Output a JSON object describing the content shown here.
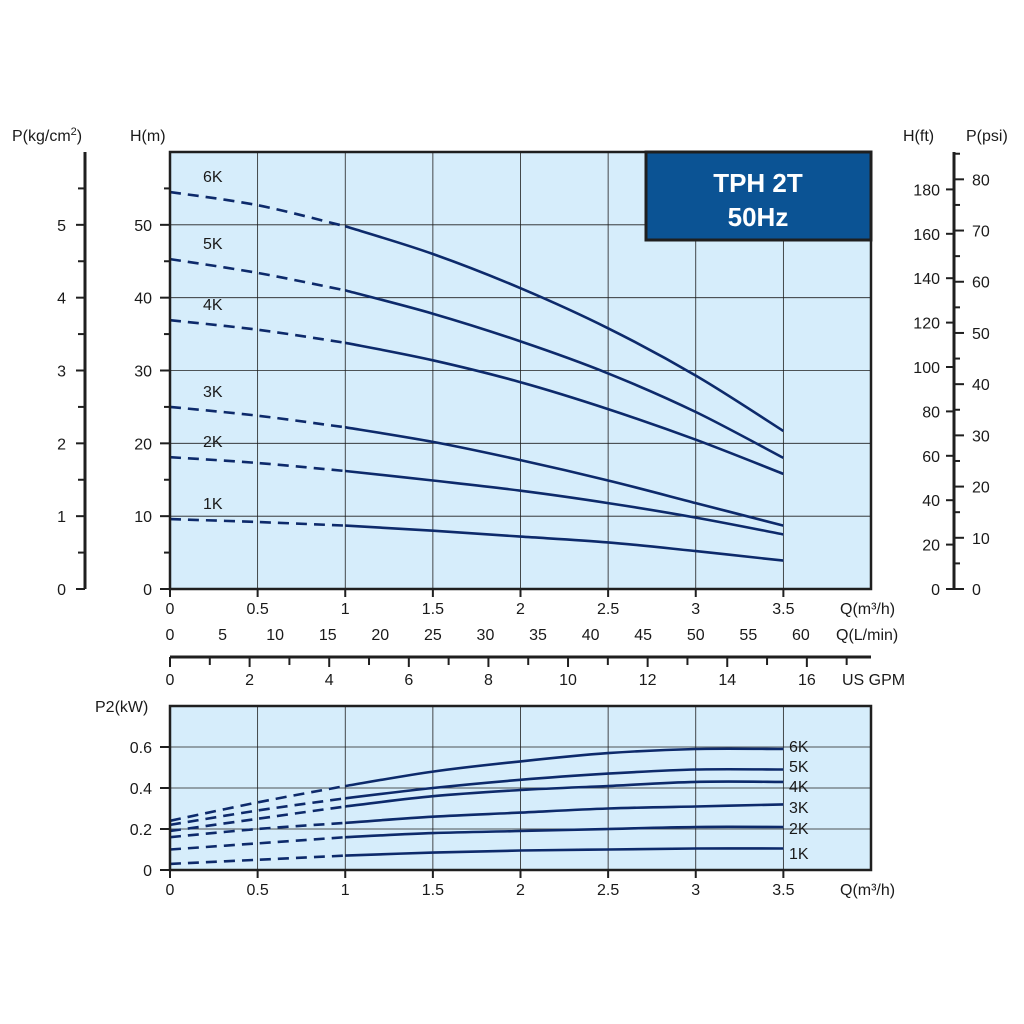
{
  "colors": {
    "plot_background": "#d6edfb",
    "grid": "#1f1f1f",
    "curve": "#0d2a6b",
    "title_box": "#0b5394",
    "title_text": "#ffffff"
  },
  "chart_data": [
    {
      "type": "line",
      "title": "TPH 2T",
      "subtitle": "50Hz",
      "xlabel": "Q(m³/h)",
      "ylabel": "H(m)",
      "xlim": [
        0,
        4
      ],
      "ylim": [
        0,
        60
      ],
      "grid": true,
      "solid_from_x": 1,
      "x_ticks": [
        "0",
        "0.5",
        "1",
        "1.5",
        "2",
        "2.5",
        "3",
        "3.5"
      ],
      "y_ticks": [
        "0",
        "10",
        "20",
        "30",
        "40",
        "50"
      ],
      "secondary_x_axes": [
        {
          "label": "Q(L/min)",
          "ticks": [
            "0",
            "5",
            "10",
            "15",
            "20",
            "25",
            "30",
            "35",
            "40",
            "45",
            "50",
            "55",
            "60"
          ]
        },
        {
          "label": "US GPM",
          "ticks": [
            "0",
            "2",
            "4",
            "6",
            "8",
            "10",
            "12",
            "14",
            "16"
          ]
        }
      ],
      "secondary_y_axes": [
        {
          "label": "P(kg/cm²)",
          "side": "left",
          "ticks": [
            "0",
            "1",
            "2",
            "3",
            "4",
            "5"
          ]
        },
        {
          "label": "H(ft)",
          "side": "right",
          "ticks": [
            "0",
            "20",
            "40",
            "60",
            "80",
            "100",
            "120",
            "140",
            "160",
            "180"
          ]
        },
        {
          "label": "P(psi)",
          "side": "right",
          "ticks": [
            "0",
            "10",
            "20",
            "30",
            "40",
            "50",
            "60",
            "70",
            "80"
          ]
        }
      ],
      "x": [
        0,
        0.5,
        1,
        1.5,
        2,
        2.5,
        3,
        3.5
      ],
      "series": [
        {
          "name": "6K",
          "values": [
            54.5,
            52.7,
            49.8,
            46.0,
            41.3,
            35.8,
            29.3,
            21.7
          ]
        },
        {
          "name": "5K",
          "values": [
            45.3,
            43.4,
            41.0,
            37.8,
            34.0,
            29.6,
            24.3,
            18.0
          ]
        },
        {
          "name": "4K",
          "values": [
            36.9,
            35.6,
            33.8,
            31.4,
            28.4,
            24.7,
            20.5,
            15.8
          ]
        },
        {
          "name": "3K",
          "values": [
            25.0,
            23.8,
            22.2,
            20.2,
            17.7,
            14.9,
            11.8,
            8.7
          ]
        },
        {
          "name": "2K",
          "values": [
            18.1,
            17.3,
            16.2,
            14.9,
            13.5,
            11.8,
            9.8,
            7.5
          ]
        },
        {
          "name": "1K",
          "values": [
            9.6,
            9.2,
            8.7,
            8.0,
            7.2,
            6.4,
            5.2,
            3.9
          ]
        }
      ]
    },
    {
      "type": "line",
      "xlabel": "Q(m³/h)",
      "ylabel": "P2(kW)",
      "xlim": [
        0,
        4
      ],
      "ylim": [
        0,
        0.8
      ],
      "grid": true,
      "solid_from_x": 1,
      "x_ticks": [
        "0",
        "0.5",
        "1",
        "1.5",
        "2",
        "2.5",
        "3",
        "3.5"
      ],
      "y_ticks": [
        "0",
        "0.2",
        "0.4",
        "0.6"
      ],
      "x": [
        0,
        0.5,
        1,
        1.5,
        2,
        2.5,
        3,
        3.5
      ],
      "series": [
        {
          "name": "6K",
          "values": [
            0.24,
            0.33,
            0.41,
            0.48,
            0.53,
            0.57,
            0.59,
            0.59
          ]
        },
        {
          "name": "5K",
          "values": [
            0.22,
            0.29,
            0.35,
            0.4,
            0.44,
            0.47,
            0.49,
            0.49
          ]
        },
        {
          "name": "4K",
          "values": [
            0.19,
            0.25,
            0.31,
            0.36,
            0.39,
            0.41,
            0.43,
            0.43
          ]
        },
        {
          "name": "3K",
          "values": [
            0.16,
            0.2,
            0.23,
            0.26,
            0.28,
            0.3,
            0.31,
            0.32
          ]
        },
        {
          "name": "2K",
          "values": [
            0.1,
            0.13,
            0.16,
            0.18,
            0.19,
            0.2,
            0.21,
            0.21
          ]
        },
        {
          "name": "1K",
          "values": [
            0.03,
            0.05,
            0.07,
            0.085,
            0.095,
            0.1,
            0.105,
            0.105
          ]
        }
      ]
    }
  ]
}
